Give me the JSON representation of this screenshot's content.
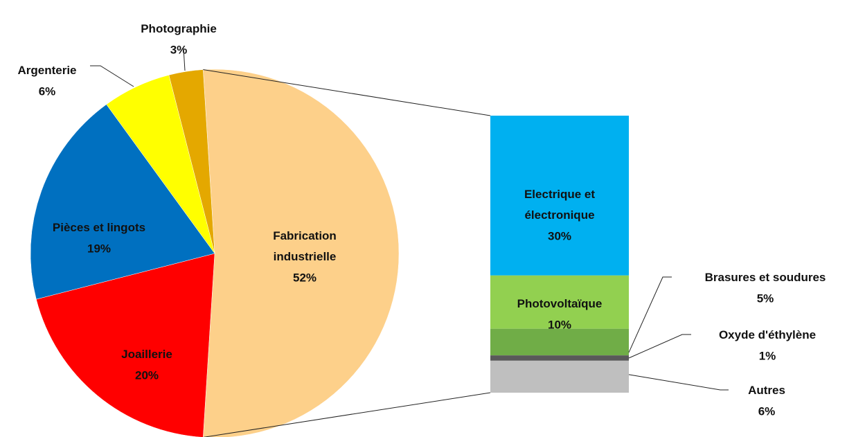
{
  "chart_data": {
    "type": "pie-of-bar",
    "pie": {
      "categories": [
        "Fabrication industrielle",
        "Joaillerie",
        "Pièces et lingots",
        "Argenterie",
        "Photographie"
      ],
      "values": [
        52,
        20,
        19,
        6,
        3
      ],
      "value_labels": [
        "52%",
        "20%",
        "19%",
        "6%",
        "3%"
      ],
      "colors": [
        "#fdd08a",
        "#ff0000",
        "#0070c0",
        "#ffff00",
        "#e4a800"
      ]
    },
    "bar": {
      "categories": [
        "Electrique et électronique",
        "Photovoltaïque",
        "Brasures et soudures",
        "Oxyde d'éthylène",
        "Autres"
      ],
      "values": [
        30,
        10,
        5,
        1,
        6
      ],
      "value_labels": [
        "30%",
        "10%",
        "5%",
        "1%",
        "6%"
      ],
      "colors": [
        "#00b0f0",
        "#92d050",
        "#70ad47",
        "#595959",
        "#bfbfbf"
      ]
    }
  }
}
